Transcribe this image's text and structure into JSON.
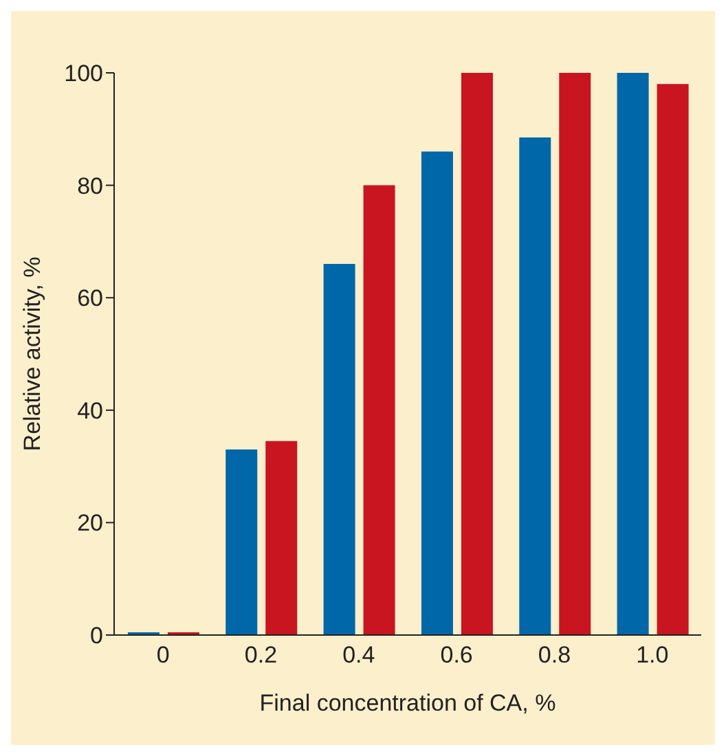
{
  "chart_data": {
    "type": "bar",
    "xlabel": "Final concentration of CA, %",
    "ylabel": "Relative activity, %",
    "categories": [
      "0",
      "0.2",
      "0.4",
      "0.6",
      "0.8",
      "1.0"
    ],
    "series": [
      {
        "color": "#0067a8",
        "values": [
          0.5,
          33,
          66,
          86,
          88.5,
          100
        ]
      },
      {
        "color": "#c8151f",
        "values": [
          0.5,
          34.5,
          80,
          100,
          100,
          98
        ]
      }
    ],
    "ylim": [
      0,
      100
    ],
    "yticks": [
      0,
      20,
      40,
      60,
      80,
      100
    ],
    "grid": false,
    "legend": false
  }
}
